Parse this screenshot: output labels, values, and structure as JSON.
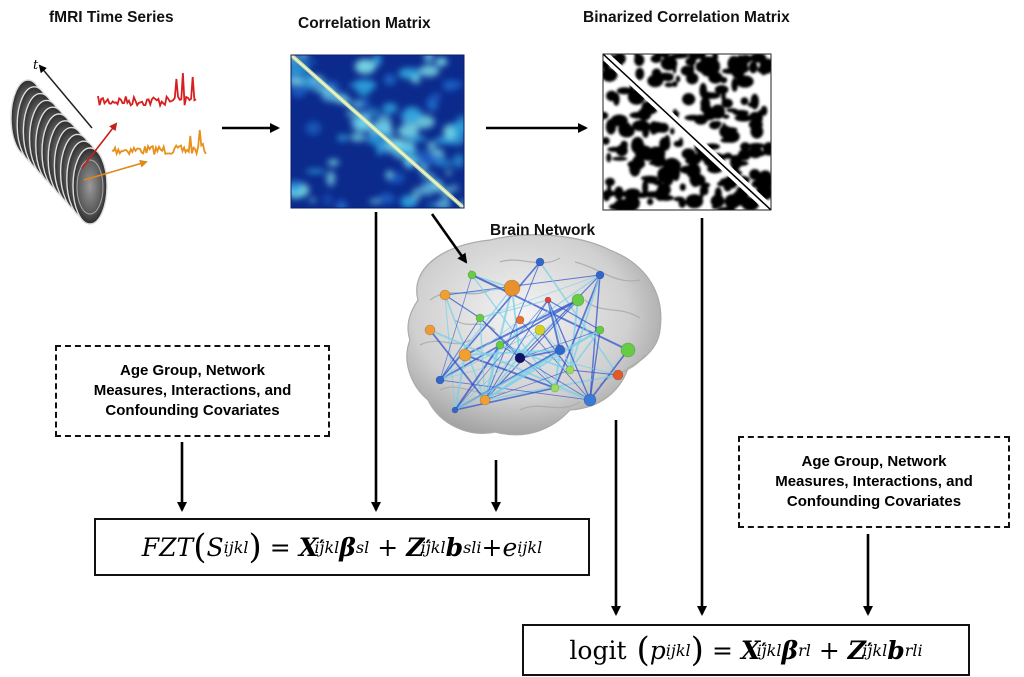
{
  "panels": {
    "fmri_title": "fMRI Time Series",
    "corr_title": "Correlation Matrix",
    "binary_title": "Binarized Correlation Matrix",
    "network_title": "Brain Network",
    "time_axis_label": "t"
  },
  "covariates_left": {
    "line1": "Age Group,  Network",
    "line2": "Measures, Interactions, and",
    "line3": "Confounding Covariates"
  },
  "covariates_right": {
    "line1": "Age Group,  Network",
    "line2": "Measures, Interactions, and",
    "line3": "Confounding Covariates"
  },
  "equation_fzt": {
    "func": "FZT",
    "S": "S",
    "S_sub": "ijkl",
    "X": "X",
    "X_sub": "ijkl",
    "beta": "β",
    "beta_sub": "sl",
    "Z": "Z",
    "Z_sub": "ijkl",
    "b": "b",
    "b_sub": "sli",
    "e": "e",
    "e_sub": "ijkl"
  },
  "equation_logit": {
    "func": "logit",
    "p": "p",
    "p_sub": "ijkl",
    "X": "X",
    "X_sub": "ijkl",
    "beta": "β",
    "beta_sub": "rl",
    "Z": "Z",
    "Z_sub": "ijkl",
    "b": "b",
    "b_sub": "rli"
  },
  "colors": {
    "signal_red": "#d81e1e",
    "signal_orange": "#e8901c",
    "matrix_dark": "#0b2a8c",
    "matrix_light": "#38b8e8",
    "diagonal": "#e8f0a0",
    "brain_gray": "#c9c9c9",
    "edge_blue": "#3355cc"
  }
}
